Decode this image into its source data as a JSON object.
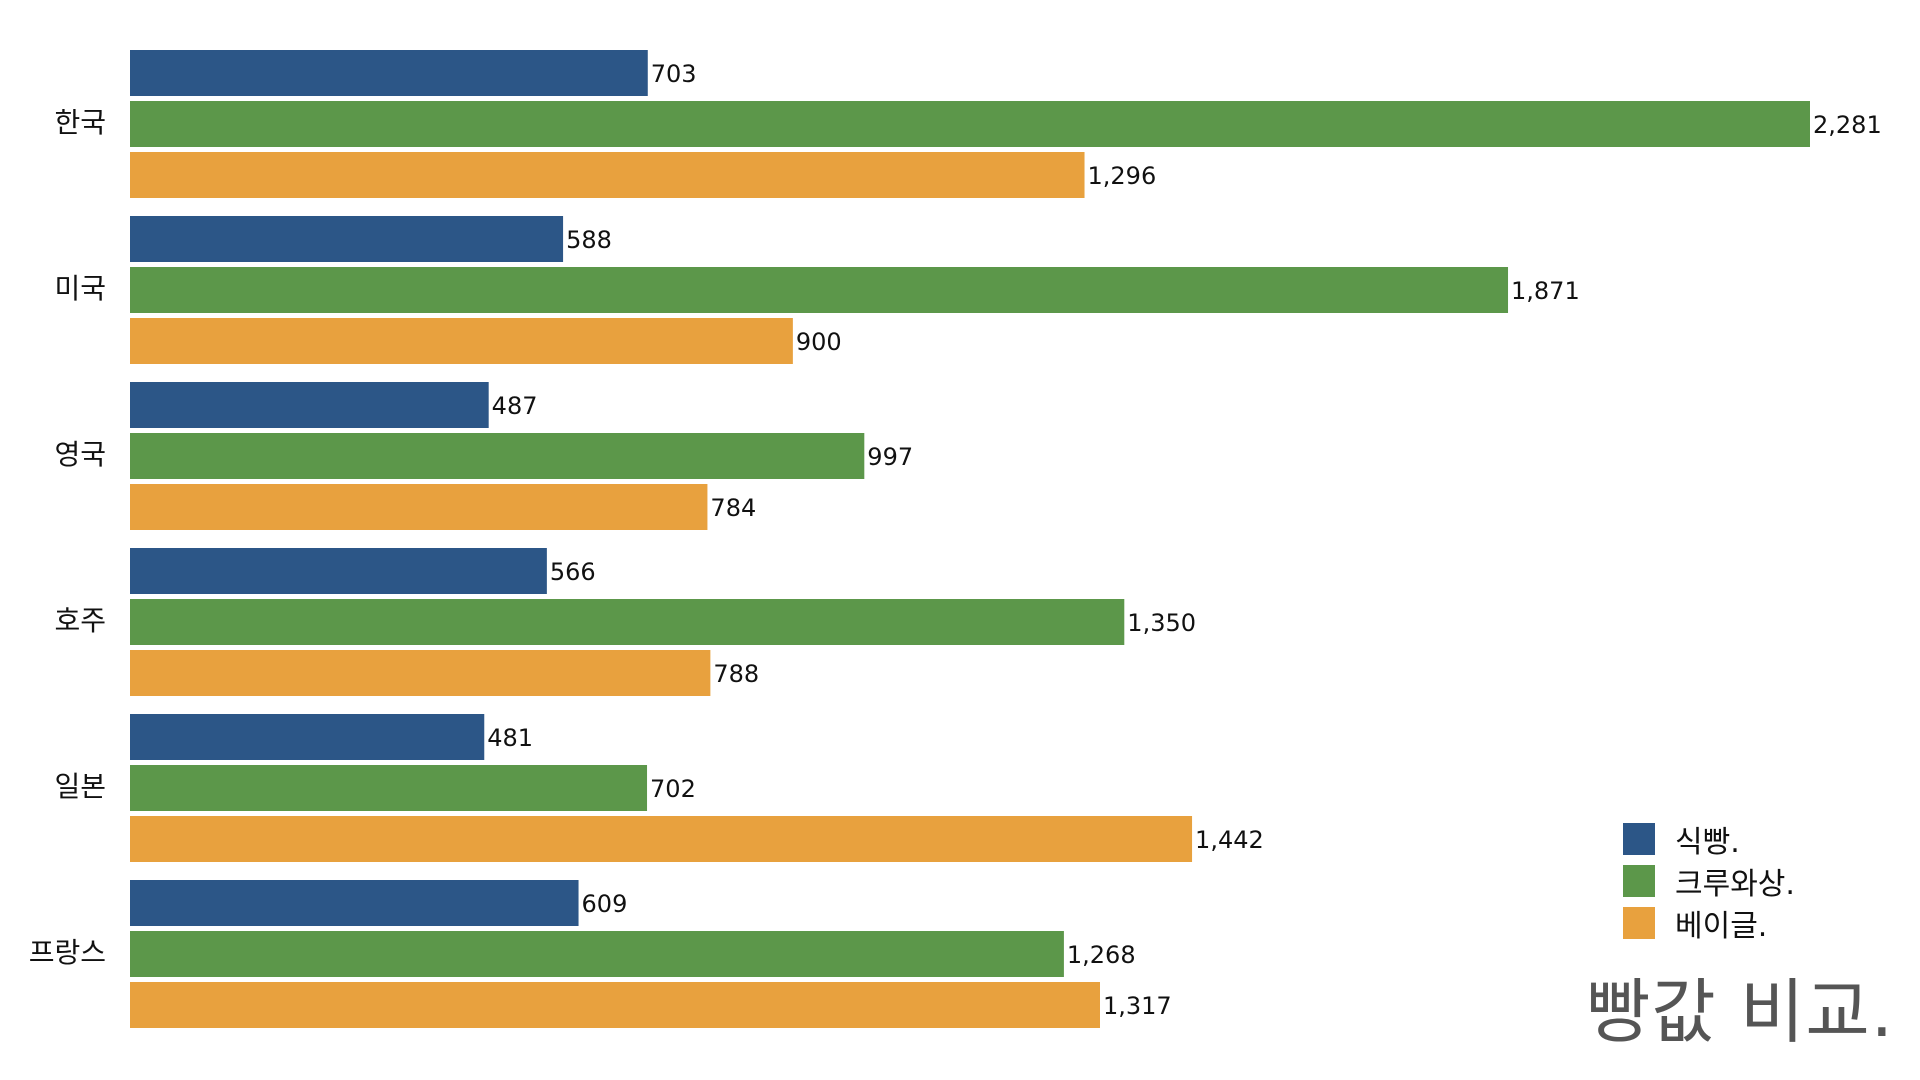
{
  "chart_data": {
    "type": "bar",
    "orientation": "horizontal",
    "title": "빵값 비교.",
    "categories": [
      "한국",
      "미국",
      "영국",
      "호주",
      "일본",
      "프랑스"
    ],
    "series": [
      {
        "name": "식빵.",
        "color": "#2c5687",
        "values": [
          703,
          588,
          487,
          566,
          481,
          609
        ]
      },
      {
        "name": "크루와상.",
        "color": "#5c974a",
        "values": [
          2281,
          1871,
          997,
          1350,
          702,
          1268
        ]
      },
      {
        "name": "베이글.",
        "color": "#e8a13e",
        "values": [
          1296,
          900,
          784,
          788,
          1442,
          1317
        ]
      }
    ],
    "xlim": [
      0,
      2281
    ],
    "grid": false,
    "legend_position": "bottom-right",
    "data_labels": true
  }
}
